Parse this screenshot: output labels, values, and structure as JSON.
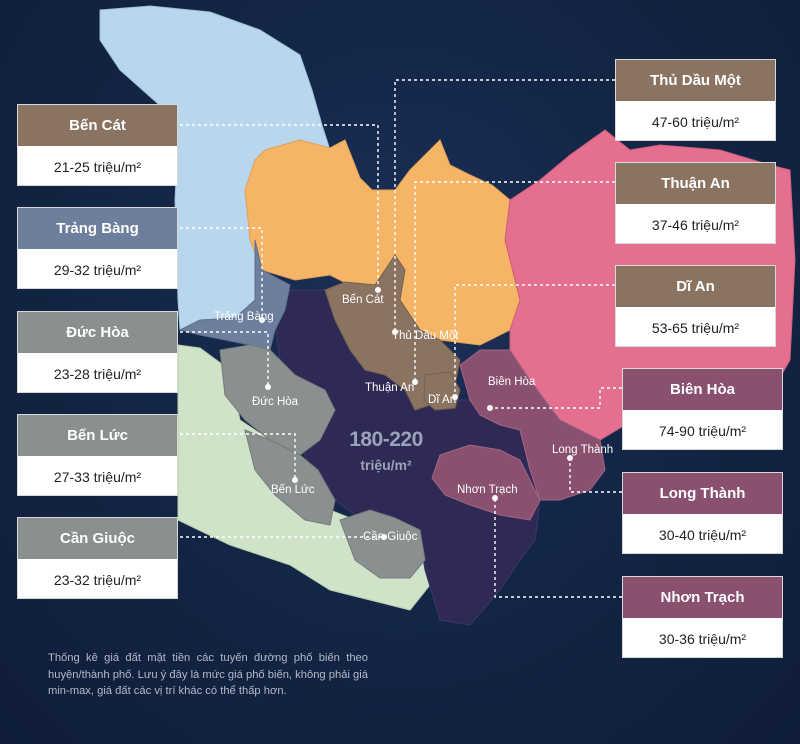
{
  "colors": {
    "brown": "#8a7461",
    "slate": "#6d7f9d",
    "gray": "#8a8f8f",
    "purple": "#89506f",
    "light_blue": "#b8d6ec",
    "light_green": "#cfe3c8",
    "orange": "#f6b466",
    "pink": "#e56f8e",
    "navy": "#2e2a55"
  },
  "cards": [
    {
      "name": "Bến Cát",
      "price": "21-25 triệu/m²",
      "color": "#8a7461"
    },
    {
      "name": "Trảng Bàng",
      "price": "29-32 triệu/m²",
      "color": "#6d7f9d"
    },
    {
      "name": "Đức Hòa",
      "price": "23-28 triệu/m²",
      "color": "#8a8f8f"
    },
    {
      "name": "Bến Lức",
      "price": "27-33 triệu/m²",
      "color": "#8a8f8f"
    },
    {
      "name": "Cần Giuộc",
      "price": "23-32 triệu/m²",
      "color": "#8a8f8f"
    },
    {
      "name": "Thủ Dầu Một",
      "price": "47-60 triệu/m²",
      "color": "#8a7461"
    },
    {
      "name": "Thuận An",
      "price": "37-46 triệu/m²",
      "color": "#8a7461"
    },
    {
      "name": "Dĩ An",
      "price": "53-65 triệu/m²",
      "color": "#8a7461"
    },
    {
      "name": "Biên Hòa",
      "price": "74-90 triệu/m²",
      "color": "#89506f"
    },
    {
      "name": "Long Thành",
      "price": "30-40 triệu/m²",
      "color": "#89506f"
    },
    {
      "name": "Nhơn Trạch",
      "price": "30-36 triệu/m²",
      "color": "#89506f"
    }
  ],
  "map_labels": {
    "ben_cat": "Bến Cát",
    "trang_bang": "Trảng Bàng",
    "thu_dau_mot": "Thủ Dầu Một",
    "duc_hoa": "Đức Hòa",
    "thuan_an": "Thuận An",
    "di_an": "Dĩ An",
    "bien_hoa": "Biên Hòa",
    "long_thanh": "Long Thành",
    "nhon_trach": "Nhơn Trạch",
    "ben_luc": "Bến Lức",
    "can_giuoc": "Cần Giuộc"
  },
  "center": {
    "price": "180-220",
    "unit": "triệu/m²"
  },
  "note": "Thống kê giá đất mặt tiền các tuyến đường phố biến theo huyện/thành phố. Lưu ý đây là mức giá phố biến, không phải giá min-max, giá đất các vị trí khác có thể thấp hơn."
}
